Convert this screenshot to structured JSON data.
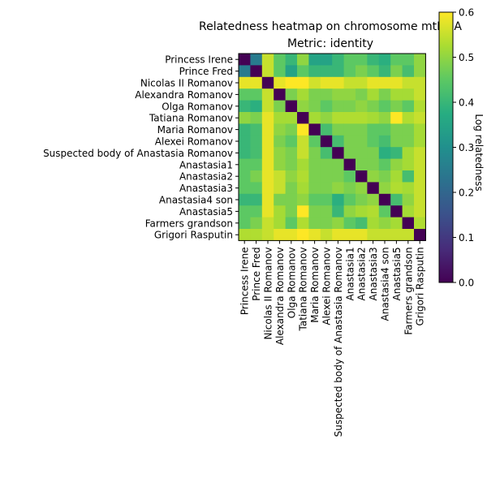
{
  "chart_data": {
    "type": "heatmap",
    "title": "Relatedness heatmap on chromosome mtDNA",
    "subtitle": "Metric: identity",
    "colorbar_label": "Log relatedness",
    "colormap": "viridis",
    "vmin": 0.0,
    "vmax": 0.6,
    "colorbar_ticks": [
      "0.0",
      "0.1",
      "0.2",
      "0.3",
      "0.4",
      "0.5",
      "0.6"
    ],
    "labels": [
      "Princess Irene",
      "Prince Fred",
      "Nicolas II Romanov",
      "Alexandra Romanov",
      "Olga Romanov",
      "Tatiana Romanov",
      "Maria Romanov",
      "Alexei Romanov",
      "Suspected body of Anastasia Romanov",
      "Anastasia1",
      "Anastasia2",
      "Anastasia3",
      "Anastasia4 son",
      "Anastasia5",
      "Farmers grandson",
      "Grigori Rasputin"
    ],
    "matrix": [
      [
        0.0,
        0.25,
        0.55,
        0.45,
        0.4,
        0.5,
        0.35,
        0.35,
        0.4,
        0.45,
        0.45,
        0.4,
        0.38,
        0.45,
        0.45,
        0.5
      ],
      [
        0.25,
        0.0,
        0.55,
        0.45,
        0.35,
        0.45,
        0.4,
        0.4,
        0.4,
        0.45,
        0.48,
        0.45,
        0.4,
        0.48,
        0.42,
        0.5
      ],
      [
        0.58,
        0.58,
        0.0,
        0.58,
        0.6,
        0.6,
        0.56,
        0.58,
        0.58,
        0.55,
        0.55,
        0.58,
        0.58,
        0.58,
        0.55,
        0.55
      ],
      [
        0.45,
        0.45,
        0.55,
        0.0,
        0.48,
        0.52,
        0.48,
        0.48,
        0.5,
        0.5,
        0.48,
        0.52,
        0.48,
        0.52,
        0.52,
        0.55
      ],
      [
        0.4,
        0.38,
        0.55,
        0.48,
        0.0,
        0.5,
        0.48,
        0.45,
        0.48,
        0.48,
        0.5,
        0.48,
        0.45,
        0.48,
        0.45,
        0.53
      ],
      [
        0.5,
        0.48,
        0.58,
        0.52,
        0.52,
        0.0,
        0.52,
        0.5,
        0.53,
        0.53,
        0.53,
        0.52,
        0.5,
        0.6,
        0.53,
        0.55
      ],
      [
        0.4,
        0.42,
        0.58,
        0.5,
        0.48,
        0.6,
        0.0,
        0.42,
        0.48,
        0.48,
        0.48,
        0.45,
        0.45,
        0.48,
        0.48,
        0.52
      ],
      [
        0.4,
        0.42,
        0.58,
        0.48,
        0.45,
        0.55,
        0.45,
        0.0,
        0.42,
        0.48,
        0.48,
        0.45,
        0.42,
        0.48,
        0.48,
        0.52
      ],
      [
        0.4,
        0.42,
        0.58,
        0.5,
        0.48,
        0.55,
        0.48,
        0.42,
        0.0,
        0.48,
        0.48,
        0.48,
        0.38,
        0.4,
        0.52,
        0.55
      ],
      [
        0.45,
        0.45,
        0.58,
        0.5,
        0.48,
        0.52,
        0.48,
        0.48,
        0.48,
        0.0,
        0.48,
        0.48,
        0.45,
        0.5,
        0.52,
        0.55
      ],
      [
        0.45,
        0.48,
        0.58,
        0.55,
        0.5,
        0.53,
        0.48,
        0.48,
        0.48,
        0.45,
        0.0,
        0.5,
        0.48,
        0.52,
        0.42,
        0.55
      ],
      [
        0.45,
        0.45,
        0.58,
        0.55,
        0.48,
        0.52,
        0.48,
        0.48,
        0.5,
        0.48,
        0.5,
        0.0,
        0.5,
        0.53,
        0.52,
        0.55
      ],
      [
        0.4,
        0.4,
        0.58,
        0.48,
        0.48,
        0.5,
        0.45,
        0.45,
        0.38,
        0.45,
        0.48,
        0.5,
        0.0,
        0.42,
        0.5,
        0.55
      ],
      [
        0.45,
        0.45,
        0.58,
        0.52,
        0.48,
        0.6,
        0.48,
        0.48,
        0.4,
        0.5,
        0.52,
        0.53,
        0.45,
        0.0,
        0.52,
        0.55
      ],
      [
        0.45,
        0.48,
        0.55,
        0.52,
        0.45,
        0.53,
        0.48,
        0.48,
        0.5,
        0.45,
        0.42,
        0.52,
        0.5,
        0.52,
        0.0,
        0.53
      ],
      [
        0.53,
        0.53,
        0.55,
        0.58,
        0.58,
        0.6,
        0.58,
        0.55,
        0.58,
        0.58,
        0.58,
        0.55,
        0.55,
        0.55,
        0.55,
        0.0
      ]
    ]
  }
}
